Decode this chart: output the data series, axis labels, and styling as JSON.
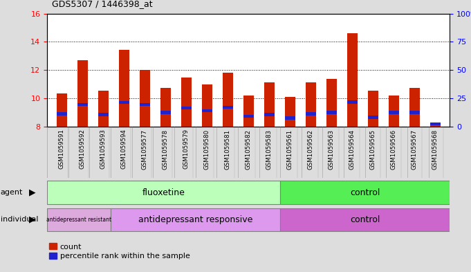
{
  "title": "GDS5307 / 1446398_at",
  "samples": [
    "GSM1059591",
    "GSM1059592",
    "GSM1059593",
    "GSM1059594",
    "GSM1059577",
    "GSM1059578",
    "GSM1059579",
    "GSM1059580",
    "GSM1059581",
    "GSM1059582",
    "GSM1059583",
    "GSM1059561",
    "GSM1059562",
    "GSM1059563",
    "GSM1059564",
    "GSM1059565",
    "GSM1059566",
    "GSM1059567",
    "GSM1059568"
  ],
  "count_values": [
    10.35,
    12.72,
    10.52,
    13.42,
    12.02,
    10.72,
    11.45,
    10.98,
    11.82,
    10.2,
    11.12,
    10.08,
    11.12,
    11.35,
    14.62,
    10.55,
    10.18,
    10.75,
    8.18
  ],
  "percentile_values": [
    8.9,
    9.55,
    8.85,
    9.7,
    9.55,
    9.0,
    9.3,
    9.12,
    9.35,
    8.72,
    8.85,
    8.6,
    8.9,
    9.0,
    9.72,
    8.65,
    9.0,
    9.0,
    8.18
  ],
  "ylim_left": [
    8,
    16
  ],
  "ylim_right": [
    0,
    100
  ],
  "yticks_left": [
    8,
    10,
    12,
    14,
    16
  ],
  "yticks_right": [
    0,
    25,
    50,
    75,
    100
  ],
  "bar_color": "#cc2200",
  "marker_color": "#2222cc",
  "bar_width": 0.5,
  "fluoxetine_color": "#bbffbb",
  "control_agent_color": "#55ee55",
  "resist_color": "#ddaadd",
  "responsive_color": "#dd99ee",
  "control_indiv_color": "#cc66cc",
  "xtick_bg_color": "#cccccc",
  "fig_bg_color": "#dddddd",
  "legend_count_label": "count",
  "legend_percentile_label": "percentile rank within the sample"
}
